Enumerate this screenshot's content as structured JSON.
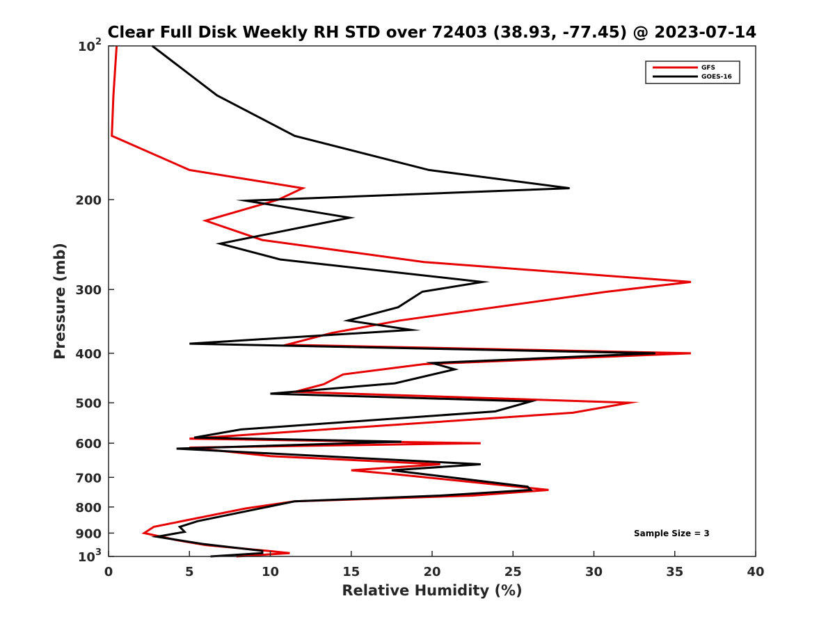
{
  "chart_data": {
    "type": "line",
    "title": "Clear Full Disk Weekly RH STD over 72403 (38.93, -77.45) @ 2023-07-14",
    "xlabel": "Relative Humidity (%)",
    "ylabel": "Pressure (mb)",
    "xlim": [
      0,
      40
    ],
    "ylim": [
      100,
      1000
    ],
    "y_scale": "log",
    "y_reversed": true,
    "x_ticks": [
      0,
      5,
      10,
      15,
      20,
      25,
      30,
      35,
      40
    ],
    "x_tick_labels": [
      "0",
      "5",
      "10",
      "15",
      "20",
      "25",
      "30",
      "35",
      "40"
    ],
    "y_ticks": [
      100,
      200,
      300,
      400,
      500,
      600,
      700,
      800,
      900,
      1000
    ],
    "y_tick_labels": [
      {
        "base": "10",
        "sup": "2"
      },
      {
        "base": "200",
        "sup": ""
      },
      {
        "base": "300",
        "sup": ""
      },
      {
        "base": "400",
        "sup": ""
      },
      {
        "base": "500",
        "sup": ""
      },
      {
        "base": "600",
        "sup": ""
      },
      {
        "base": "700",
        "sup": ""
      },
      {
        "base": "800",
        "sup": ""
      },
      {
        "base": "900",
        "sup": ""
      },
      {
        "base": "10",
        "sup": "3"
      }
    ],
    "grid": false,
    "legend": "top-right",
    "annotation": "Sample Size = 3",
    "series": [
      {
        "name": "GFS",
        "color": "#e60000",
        "points": [
          [
            0.5,
            100
          ],
          [
            0.3,
            125
          ],
          [
            0.2,
            150
          ],
          [
            5.0,
            175
          ],
          [
            12.0,
            190
          ],
          [
            10.5,
            200
          ],
          [
            6.0,
            220
          ],
          [
            9.5,
            240
          ],
          [
            19.5,
            265
          ],
          [
            36.0,
            290
          ],
          [
            30.8,
            303
          ],
          [
            18.0,
            345
          ],
          [
            13.8,
            365
          ],
          [
            11.0,
            385
          ],
          [
            36.0,
            400
          ],
          [
            19.5,
            420
          ],
          [
            14.5,
            440
          ],
          [
            13.3,
            460
          ],
          [
            11.5,
            476
          ],
          [
            32.2,
            500
          ],
          [
            28.7,
            523
          ],
          [
            5.0,
            588
          ],
          [
            23.0,
            600
          ],
          [
            5.0,
            612
          ],
          [
            10.0,
            636
          ],
          [
            20.5,
            660
          ],
          [
            15.0,
            678
          ],
          [
            17.7,
            690
          ],
          [
            27.2,
            741
          ],
          [
            22.5,
            760
          ],
          [
            11.5,
            780
          ],
          [
            8.5,
            805
          ],
          [
            2.8,
            875
          ],
          [
            2.2,
            900
          ],
          [
            4.3,
            930
          ],
          [
            6.0,
            950
          ],
          [
            9.8,
            975
          ],
          [
            11.2,
            985
          ],
          [
            7.9,
            1000
          ]
        ]
      },
      {
        "name": "GOES-16",
        "color": "#000000",
        "points": [
          [
            2.7,
            100
          ],
          [
            6.7,
            125
          ],
          [
            11.5,
            150
          ],
          [
            19.8,
            175
          ],
          [
            28.5,
            190
          ],
          [
            8.5,
            201
          ],
          [
            14.9,
            217
          ],
          [
            6.9,
            244
          ],
          [
            10.6,
            262
          ],
          [
            23.1,
            290
          ],
          [
            19.4,
            303
          ],
          [
            17.9,
            325
          ],
          [
            14.8,
            345
          ],
          [
            18.7,
            360
          ],
          [
            5.0,
            383
          ],
          [
            33.8,
            400
          ],
          [
            20.0,
            418
          ],
          [
            21.4,
            430
          ],
          [
            17.7,
            458
          ],
          [
            10.0,
            480
          ],
          [
            26.1,
            497
          ],
          [
            23.9,
            520
          ],
          [
            8.2,
            564
          ],
          [
            5.3,
            585
          ],
          [
            18.1,
            596
          ],
          [
            4.2,
            615
          ],
          [
            23.0,
            660
          ],
          [
            17.5,
            678
          ],
          [
            25.9,
            730
          ],
          [
            26.1,
            741
          ],
          [
            20.5,
            760
          ],
          [
            11.5,
            780
          ],
          [
            5.5,
            853
          ],
          [
            4.4,
            875
          ],
          [
            4.7,
            895
          ],
          [
            3.0,
            915
          ],
          [
            5.8,
            945
          ],
          [
            9.5,
            975
          ],
          [
            9.5,
            985
          ],
          [
            6.3,
            1000
          ]
        ]
      }
    ]
  }
}
